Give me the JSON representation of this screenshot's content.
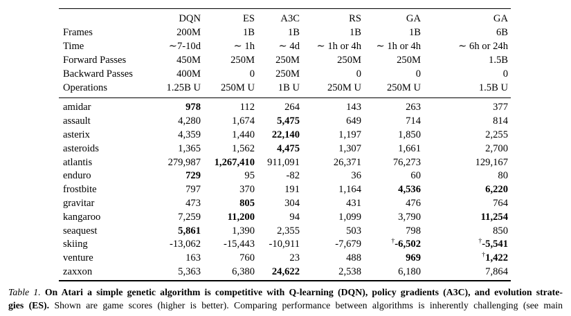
{
  "colors": {
    "text": "#000000",
    "background": "#ffffff",
    "rule": "#000000"
  },
  "table": {
    "header": [
      "DQN",
      "ES",
      "A3C",
      "RS",
      "GA",
      "GA"
    ],
    "meta_rows": [
      {
        "label": "Frames",
        "values": [
          "200M",
          "1B",
          "1B",
          "1B",
          "1B",
          "6B"
        ]
      },
      {
        "label": "Time",
        "values": [
          "∼7-10d",
          "∼ 1h",
          "∼ 4d",
          "∼ 1h or 4h",
          "∼ 1h or 4h",
          "∼ 6h or 24h"
        ]
      },
      {
        "label": "Forward Passes",
        "values": [
          "450M",
          "250M",
          "250M",
          "250M",
          "250M",
          "1.5B"
        ]
      },
      {
        "label": "Backward Passes",
        "values": [
          "400M",
          "0",
          "250M",
          "0",
          "0",
          "0"
        ]
      },
      {
        "label": "Operations",
        "values": [
          "1.25B U",
          "250M U",
          "1B U",
          "250M U",
          "250M U",
          "1.5B U"
        ]
      }
    ],
    "game_rows": [
      {
        "label": "amidar",
        "cells": [
          {
            "v": "978",
            "bold": true
          },
          {
            "v": "112"
          },
          {
            "v": "264"
          },
          {
            "v": "143"
          },
          {
            "v": "263"
          },
          {
            "v": "377"
          }
        ]
      },
      {
        "label": "assault",
        "cells": [
          {
            "v": "4,280"
          },
          {
            "v": "1,674"
          },
          {
            "v": "5,475",
            "bold": true
          },
          {
            "v": "649"
          },
          {
            "v": "714"
          },
          {
            "v": "814"
          }
        ]
      },
      {
        "label": "asterix",
        "cells": [
          {
            "v": "4,359"
          },
          {
            "v": "1,440"
          },
          {
            "v": "22,140",
            "bold": true
          },
          {
            "v": "1,197"
          },
          {
            "v": "1,850"
          },
          {
            "v": "2,255"
          }
        ]
      },
      {
        "label": "asteroids",
        "cells": [
          {
            "v": "1,365"
          },
          {
            "v": "1,562"
          },
          {
            "v": "4,475",
            "bold": true
          },
          {
            "v": "1,307"
          },
          {
            "v": "1,661"
          },
          {
            "v": "2,700"
          }
        ]
      },
      {
        "label": "atlantis",
        "cells": [
          {
            "v": "279,987"
          },
          {
            "v": "1,267,410",
            "bold": true
          },
          {
            "v": "911,091"
          },
          {
            "v": "26,371"
          },
          {
            "v": "76,273"
          },
          {
            "v": "129,167"
          }
        ]
      },
      {
        "label": "enduro",
        "cells": [
          {
            "v": "729",
            "bold": true
          },
          {
            "v": "95"
          },
          {
            "v": "-82"
          },
          {
            "v": "36"
          },
          {
            "v": "60"
          },
          {
            "v": "80"
          }
        ]
      },
      {
        "label": "frostbite",
        "cells": [
          {
            "v": "797"
          },
          {
            "v": "370"
          },
          {
            "v": "191"
          },
          {
            "v": "1,164"
          },
          {
            "v": "4,536",
            "bold": true
          },
          {
            "v": "6,220",
            "bold": true
          }
        ]
      },
      {
        "label": "gravitar",
        "cells": [
          {
            "v": "473"
          },
          {
            "v": "805",
            "bold": true
          },
          {
            "v": "304"
          },
          {
            "v": "431"
          },
          {
            "v": "476"
          },
          {
            "v": "764"
          }
        ]
      },
      {
        "label": "kangaroo",
        "cells": [
          {
            "v": "7,259"
          },
          {
            "v": "11,200",
            "bold": true
          },
          {
            "v": "94"
          },
          {
            "v": "1,099"
          },
          {
            "v": "3,790"
          },
          {
            "v": "11,254",
            "bold": true
          }
        ]
      },
      {
        "label": "seaquest",
        "cells": [
          {
            "v": "5,861",
            "bold": true
          },
          {
            "v": "1,390"
          },
          {
            "v": "2,355"
          },
          {
            "v": "503"
          },
          {
            "v": "798"
          },
          {
            "v": "850"
          }
        ]
      },
      {
        "label": "skiing",
        "cells": [
          {
            "v": "-13,062"
          },
          {
            "v": "-15,443"
          },
          {
            "v": "-10,911"
          },
          {
            "v": "-7,679"
          },
          {
            "v": "-6,502",
            "bold": true,
            "dagger": true
          },
          {
            "v": "-5,541",
            "bold": true,
            "dagger": true
          }
        ]
      },
      {
        "label": "venture",
        "cells": [
          {
            "v": "163"
          },
          {
            "v": "760"
          },
          {
            "v": "23"
          },
          {
            "v": "488"
          },
          {
            "v": "969",
            "bold": true
          },
          {
            "v": "1,422",
            "bold": true,
            "dagger": true
          }
        ]
      },
      {
        "label": "zaxxon",
        "cells": [
          {
            "v": "5,363"
          },
          {
            "v": "6,380"
          },
          {
            "v": "24,622",
            "bold": true
          },
          {
            "v": "2,538"
          },
          {
            "v": "6,180"
          },
          {
            "v": "7,864"
          }
        ]
      }
    ],
    "dagger_symbol": "†"
  },
  "caption": {
    "label": "Table 1.",
    "line1_bold": "On Atari a simple genetic algorithm is competitive with Q-learning (DQN), policy gradients (A3C), and evolution strate-",
    "line2_bold": "gies (ES).",
    "line2_text": "Shown are game scores (higher is better). Comparing performance between algorithms is inherently challenging (see main"
  }
}
